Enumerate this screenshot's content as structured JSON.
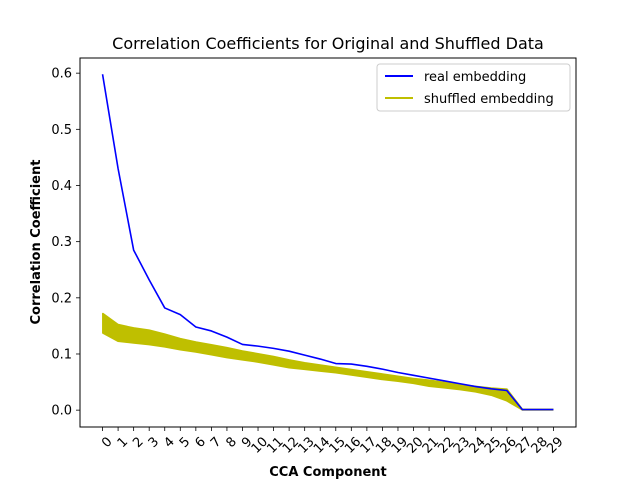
{
  "chart_data": {
    "type": "line",
    "title": "Correlation Coefficients for Original and Shuffled Data",
    "xlabel": "CCA Component",
    "ylabel": "Correlation Coefficient",
    "x": [
      0,
      1,
      2,
      3,
      4,
      5,
      6,
      7,
      8,
      9,
      10,
      11,
      12,
      13,
      14,
      15,
      16,
      17,
      18,
      19,
      20,
      21,
      22,
      23,
      24,
      25,
      26,
      27,
      28,
      29
    ],
    "xticks": [
      "0",
      "1",
      "2",
      "3",
      "4",
      "5",
      "6",
      "7",
      "8",
      "9",
      "10",
      "11",
      "12",
      "13",
      "14",
      "15",
      "16",
      "17",
      "18",
      "19",
      "20",
      "21",
      "22",
      "23",
      "24",
      "25",
      "26",
      "27",
      "28",
      "29"
    ],
    "yticks": [
      "0.0",
      "0.1",
      "0.2",
      "0.3",
      "0.4",
      "0.5",
      "0.6"
    ],
    "xlim": [
      -1.45,
      30.45
    ],
    "ylim": [
      -0.03,
      0.627
    ],
    "grid": false,
    "legend_position": "top-right",
    "series": [
      {
        "name": "real embedding",
        "color": "#0000ff",
        "values": [
          0.598,
          0.43,
          0.285,
          0.232,
          0.182,
          0.17,
          0.148,
          0.141,
          0.13,
          0.117,
          0.114,
          0.11,
          0.105,
          0.098,
          0.091,
          0.083,
          0.082,
          0.078,
          0.073,
          0.067,
          0.062,
          0.057,
          0.052,
          0.047,
          0.042,
          0.038,
          0.035,
          0.001,
          0.001,
          0.001
        ]
      },
      {
        "name": "shuffled embedding",
        "color": "#bfbf00",
        "band": true,
        "upper": [
          0.172,
          0.152,
          0.146,
          0.142,
          0.135,
          0.127,
          0.121,
          0.116,
          0.111,
          0.105,
          0.1,
          0.095,
          0.089,
          0.084,
          0.08,
          0.076,
          0.072,
          0.068,
          0.064,
          0.06,
          0.056,
          0.053,
          0.049,
          0.045,
          0.042,
          0.039,
          0.037,
          0.001,
          0.001,
          0.001
        ],
        "lower": [
          0.138,
          0.123,
          0.12,
          0.117,
          0.113,
          0.108,
          0.104,
          0.099,
          0.094,
          0.09,
          0.086,
          0.081,
          0.076,
          0.073,
          0.07,
          0.067,
          0.063,
          0.059,
          0.055,
          0.052,
          0.048,
          0.043,
          0.04,
          0.037,
          0.033,
          0.027,
          0.017,
          0.001,
          0.001,
          0.001
        ]
      }
    ]
  }
}
